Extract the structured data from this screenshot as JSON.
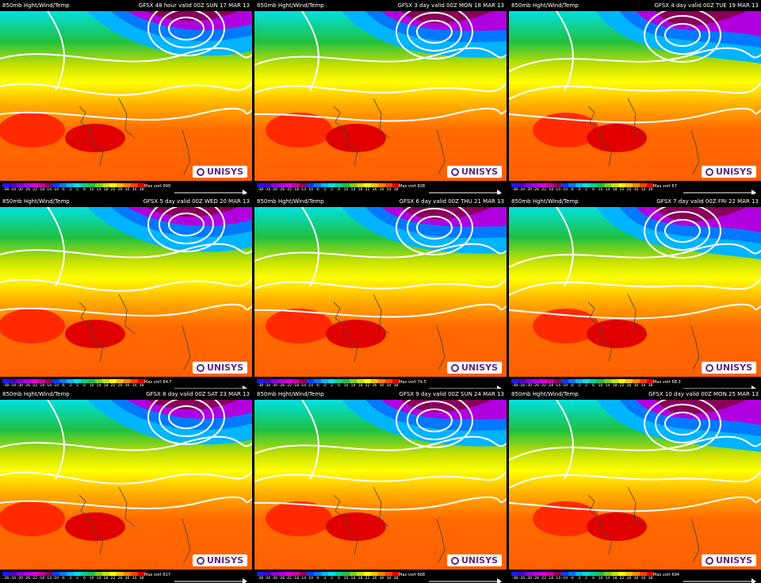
{
  "brand": "UNISYS",
  "legend": {
    "ticks": [
      "-38",
      "-34",
      "-30",
      "-26",
      "-22",
      "-18",
      "-14",
      "-10",
      "-6",
      "-2",
      "2",
      "6",
      "10",
      "14",
      "18",
      "22",
      "26",
      "30",
      "34",
      "38"
    ],
    "colors": [
      "#1a1aff",
      "#4a00c8",
      "#8a00d8",
      "#b000e0",
      "#d800d8",
      "#c8009a",
      "#8a0058",
      "#003cff",
      "#0078ff",
      "#00b4ff",
      "#00e0e0",
      "#00d090",
      "#20c040",
      "#7ad020",
      "#c8e000",
      "#ffff00",
      "#ffc000",
      "#ff8000",
      "#ff4000",
      "#e00000"
    ]
  },
  "panels": [
    {
      "title_left": "850mb Hght/Wind/Temp",
      "title_right": "GFSX 48 hour valid 00Z SUN 17 MAR 13",
      "max_vort": "Max vort 999"
    },
    {
      "title_left": "850mb Hght/Wind/Temp",
      "title_right": "GFSX 3 day valid 00Z MON 18 MAR 13",
      "max_vort": "Max vort 828"
    },
    {
      "title_left": "850mb Hght/Wind/Temp",
      "title_right": "GFSX 4 day valid 00Z TUE 19 MAR 13",
      "max_vort": "Max vort 67"
    },
    {
      "title_left": "850mb Hght/Wind/Temp",
      "title_right": "GFSX 5 day valid 00Z WED 20 MAR 13",
      "max_vort": "Max vort 84.7"
    },
    {
      "title_left": "850mb Hght/Wind/Temp",
      "title_right": "GFSX 6 day valid 00Z THU 21 MAR 13",
      "max_vort": "Max vort 74.5"
    },
    {
      "title_left": "850mb Hght/Wind/Temp",
      "title_right": "GFSX 7 day valid 00Z FRI 22 MAR 13",
      "max_vort": "Max vort 68.3"
    },
    {
      "title_left": "850mb Hght/Wind/Temp",
      "title_right": "GFSX 8 day valid 00Z SAT 23 MAR 13",
      "max_vort": "Max vort 617"
    },
    {
      "title_left": "850mb Hght/Wind/Temp",
      "title_right": "GFSX 9 day valid 00Z SUN 24 MAR 13",
      "max_vort": "Max vort 668"
    },
    {
      "title_left": "850mb Hght/Wind/Temp",
      "title_right": "GFSX 10 day valid 00Z MON 25 MAR 13",
      "max_vort": "Max vort 694"
    }
  ]
}
